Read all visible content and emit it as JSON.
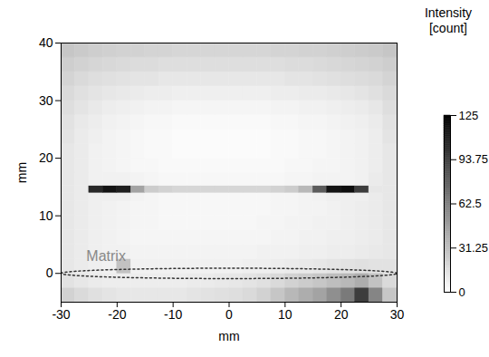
{
  "chart_data": {
    "type": "heatmap",
    "xlabel": "mm",
    "ylabel": "mm",
    "xlim": [
      -30,
      30
    ],
    "ylim": [
      -5,
      40
    ],
    "xticks": [
      -30,
      -20,
      -10,
      0,
      10,
      20,
      30
    ],
    "yticks": [
      0,
      10,
      20,
      30,
      40
    ],
    "x_edges": [
      -30,
      -27.5,
      -25,
      -22.5,
      -20,
      -17.5,
      -15,
      -12.5,
      -10,
      -7.5,
      -5,
      -2.5,
      0,
      2.5,
      5,
      7.5,
      10,
      12.5,
      15,
      17.5,
      20,
      22.5,
      25,
      27.5,
      30
    ],
    "y_edges": [
      -5,
      -2.5,
      0,
      2.5,
      5,
      7.5,
      10,
      12.5,
      14,
      15.2,
      17.5,
      20,
      22.5,
      25,
      27.5,
      30,
      32.5,
      35,
      37.5,
      40
    ],
    "cells": [
      [
        22,
        18,
        15,
        13,
        12,
        12,
        12,
        12,
        12,
        13,
        14,
        15,
        16,
        18,
        22,
        28,
        35,
        40,
        45,
        55,
        65,
        95,
        60,
        28
      ],
      [
        14,
        12,
        10,
        9,
        9,
        9,
        9,
        9,
        9,
        10,
        10,
        11,
        12,
        13,
        15,
        18,
        22,
        25,
        28,
        32,
        35,
        40,
        30,
        18
      ],
      [
        12,
        10,
        8,
        7,
        30,
        7,
        7,
        7,
        7,
        7,
        7,
        7,
        7,
        8,
        8,
        9,
        10,
        11,
        12,
        13,
        14,
        15,
        14,
        14
      ],
      [
        12,
        10,
        8,
        7,
        7,
        6,
        6,
        6,
        6,
        6,
        6,
        6,
        6,
        6,
        7,
        7,
        7,
        8,
        8,
        9,
        9,
        10,
        11,
        12
      ],
      [
        12,
        10,
        8,
        7,
        6,
        5,
        5,
        5,
        5,
        5,
        5,
        5,
        5,
        5,
        5,
        6,
        6,
        7,
        7,
        8,
        8,
        9,
        10,
        12
      ],
      [
        12,
        10,
        8,
        7,
        6,
        5,
        5,
        4,
        4,
        4,
        4,
        4,
        4,
        4,
        5,
        5,
        6,
        6,
        7,
        7,
        8,
        9,
        10,
        12
      ],
      [
        12,
        10,
        8,
        7,
        6,
        5,
        5,
        4,
        4,
        4,
        4,
        4,
        4,
        4,
        4,
        5,
        5,
        6,
        6,
        7,
        8,
        9,
        10,
        12
      ],
      [
        12,
        10,
        8,
        8,
        8,
        6,
        5,
        4,
        4,
        4,
        4,
        4,
        4,
        4,
        4,
        5,
        5,
        6,
        7,
        8,
        8,
        8,
        10,
        12
      ],
      [
        12,
        10,
        105,
        115,
        110,
        45,
        25,
        22,
        20,
        20,
        20,
        20,
        20,
        20,
        20,
        22,
        25,
        35,
        80,
        115,
        118,
        95,
        12,
        12
      ],
      [
        12,
        10,
        7,
        7,
        7,
        6,
        5,
        4,
        4,
        4,
        4,
        4,
        4,
        4,
        4,
        4,
        5,
        5,
        6,
        6,
        6,
        7,
        10,
        12
      ],
      [
        12,
        10,
        7,
        6,
        5,
        4,
        4,
        3,
        3,
        3,
        3,
        3,
        3,
        3,
        3,
        3,
        4,
        4,
        5,
        5,
        6,
        7,
        9,
        12
      ],
      [
        12,
        10,
        7,
        6,
        5,
        4,
        3,
        3,
        2,
        2,
        2,
        2,
        2,
        2,
        2,
        3,
        3,
        4,
        4,
        5,
        6,
        7,
        9,
        12
      ],
      [
        13,
        10,
        8,
        6,
        5,
        4,
        3,
        3,
        2,
        2,
        2,
        2,
        2,
        2,
        2,
        3,
        3,
        4,
        4,
        5,
        6,
        7,
        9,
        13
      ],
      [
        14,
        11,
        9,
        7,
        6,
        5,
        4,
        4,
        3,
        3,
        3,
        3,
        3,
        3,
        3,
        4,
        4,
        5,
        5,
        6,
        7,
        8,
        10,
        14
      ],
      [
        16,
        13,
        11,
        9,
        8,
        7,
        6,
        6,
        5,
        5,
        5,
        5,
        5,
        5,
        5,
        6,
        6,
        7,
        7,
        8,
        9,
        10,
        12,
        16
      ],
      [
        18,
        15,
        13,
        12,
        11,
        10,
        9,
        9,
        8,
        8,
        8,
        8,
        8,
        8,
        8,
        9,
        9,
        10,
        10,
        11,
        12,
        13,
        15,
        18
      ],
      [
        21,
        18,
        16,
        15,
        14,
        13,
        13,
        12,
        12,
        12,
        12,
        12,
        12,
        12,
        12,
        12,
        13,
        13,
        14,
        15,
        16,
        17,
        18,
        21
      ],
      [
        24,
        22,
        20,
        19,
        18,
        17,
        17,
        16,
        16,
        16,
        16,
        16,
        16,
        16,
        16,
        16,
        17,
        17,
        18,
        19,
        20,
        21,
        22,
        24
      ],
      [
        28,
        26,
        24,
        23,
        22,
        22,
        21,
        21,
        20,
        20,
        20,
        20,
        20,
        20,
        20,
        21,
        21,
        22,
        22,
        23,
        24,
        25,
        26,
        28
      ]
    ],
    "colorbar": {
      "label": "Intensity\n[count]",
      "range": [
        0,
        125
      ],
      "ticks": [
        0,
        31.25,
        62.5,
        93.75,
        125
      ]
    },
    "annotations": [
      {
        "text": "Matrix"
      }
    ]
  }
}
